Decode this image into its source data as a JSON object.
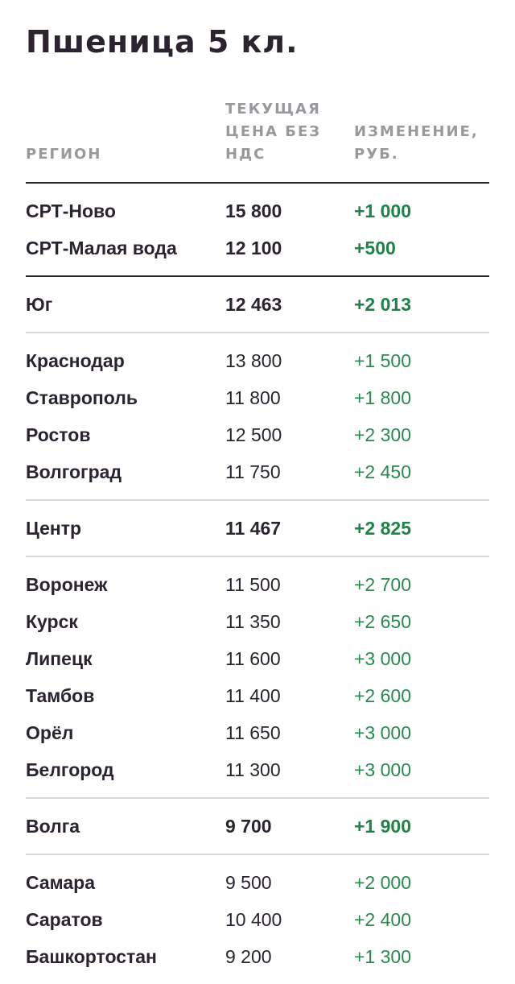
{
  "title": "Пшеница 5 кл.",
  "headers": {
    "region": "РЕГИОН",
    "price": "ТЕКУЩАЯ ЦЕНА БЕЗ НДС",
    "change": "ИЗМЕНЕНИЕ, РУБ."
  },
  "colors": {
    "text": "#2b2430",
    "muted": "#9a979d",
    "positive": "#2a8a4e",
    "rule_dark": "#2b2430",
    "rule_light": "#d9d8db"
  },
  "groups": [
    {
      "rows": [
        {
          "region": "СРТ-Ново",
          "price": "15 800",
          "change": "+1 000",
          "bold": true
        },
        {
          "region": "СРТ-Малая вода",
          "price": "12 100",
          "change": "+500",
          "bold": true
        }
      ]
    },
    {
      "rows": [
        {
          "region": "Юг",
          "price": "12 463",
          "change": "+2 013",
          "bold": true
        }
      ]
    },
    {
      "rows": [
        {
          "region": "Краснодар",
          "price": "13 800",
          "change": "+1 500",
          "bold": false
        },
        {
          "region": "Ставрополь",
          "price": "11 800",
          "change": "+1 800",
          "bold": false
        },
        {
          "region": "Ростов",
          "price": "12 500",
          "change": "+2 300",
          "bold": false
        },
        {
          "region": "Волгоград",
          "price": "11 750",
          "change": "+2 450",
          "bold": false
        }
      ]
    },
    {
      "rows": [
        {
          "region": "Центр",
          "price": "11 467",
          "change": "+2 825",
          "bold": true
        }
      ]
    },
    {
      "rows": [
        {
          "region": "Воронеж",
          "price": "11 500",
          "change": "+2 700",
          "bold": false
        },
        {
          "region": "Курск",
          "price": "11 350",
          "change": "+2 650",
          "bold": false
        },
        {
          "region": "Липецк",
          "price": "11 600",
          "change": "+3 000",
          "bold": false
        },
        {
          "region": "Тамбов",
          "price": "11 400",
          "change": "+2 600",
          "bold": false
        },
        {
          "region": "Орёл",
          "price": "11 650",
          "change": "+3 000",
          "bold": false
        },
        {
          "region": "Белгород",
          "price": "11 300",
          "change": "+3 000",
          "bold": false
        }
      ]
    },
    {
      "rows": [
        {
          "region": "Волга",
          "price": "9 700",
          "change": "+1 900",
          "bold": true
        }
      ]
    },
    {
      "rows": [
        {
          "region": "Самара",
          "price": "9 500",
          "change": "+2 000",
          "bold": false
        },
        {
          "region": "Саратов",
          "price": "10 400",
          "change": "+2 400",
          "bold": false
        },
        {
          "region": "Башкортостан",
          "price": "9 200",
          "change": "+1 300",
          "bold": false
        }
      ]
    }
  ]
}
